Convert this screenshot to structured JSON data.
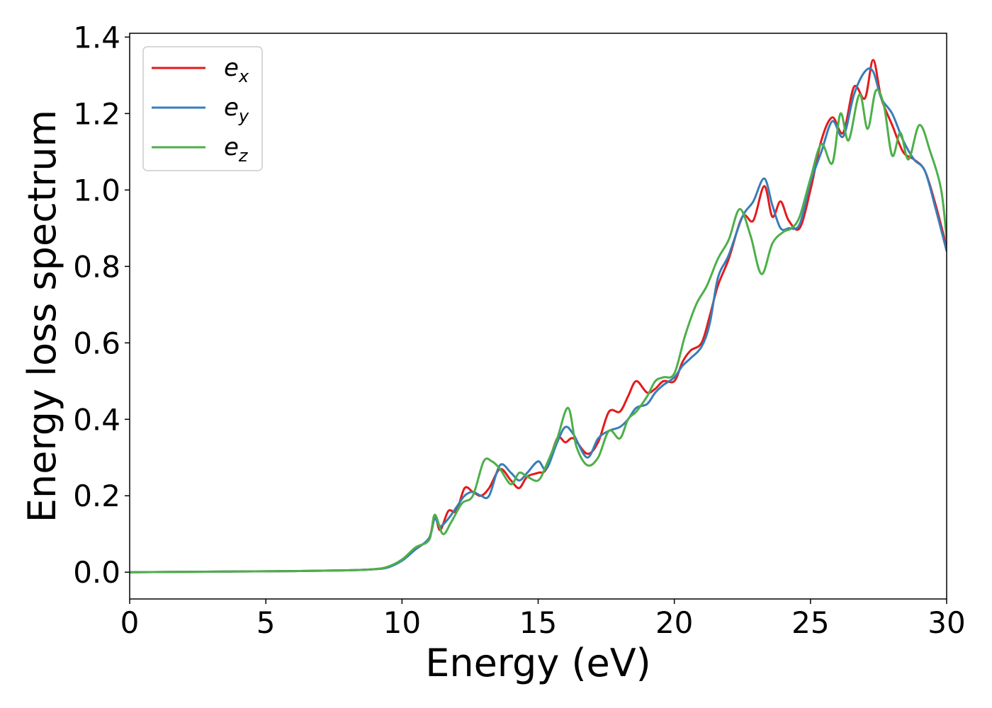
{
  "chart_data": {
    "type": "line",
    "title": "",
    "xlabel": "Energy (eV)",
    "ylabel": "Energy loss spectrum",
    "xlim": [
      0,
      30
    ],
    "ylim": [
      -0.07,
      1.41
    ],
    "xticks": [
      0,
      5,
      10,
      15,
      20,
      25,
      30
    ],
    "xtick_labels": [
      "0",
      "5",
      "10",
      "15",
      "20",
      "25",
      "30"
    ],
    "yticks": [
      0.0,
      0.2,
      0.4,
      0.6,
      0.8,
      1.0,
      1.2,
      1.4
    ],
    "ytick_labels": [
      "0.0",
      "0.2",
      "0.4",
      "0.6",
      "0.8",
      "1.0",
      "1.2",
      "1.4"
    ],
    "grid": false,
    "legend_position": "top-left",
    "series": [
      {
        "name": "e_x",
        "legend_base": "e",
        "legend_sub": "x",
        "color": "#e41a1c",
        "x": [
          0,
          2,
          4,
          6,
          8,
          9,
          9.5,
          10,
          10.5,
          11,
          11.2,
          11.4,
          11.7,
          12,
          12.3,
          12.6,
          12.9,
          13.2,
          13.6,
          14,
          14.3,
          14.6,
          15,
          15.3,
          15.7,
          16,
          16.3,
          16.8,
          17.2,
          17.6,
          18,
          18.3,
          18.6,
          19,
          19.3,
          19.6,
          20,
          20.3,
          20.6,
          21,
          21.3,
          21.6,
          22,
          22.5,
          22.9,
          23.3,
          23.6,
          23.9,
          24.2,
          24.6,
          25,
          25.4,
          25.8,
          26.2,
          26.6,
          27,
          27.3,
          27.6,
          28,
          28.4,
          28.8,
          29.2,
          29.6,
          30
        ],
        "y": [
          0,
          0.001,
          0.002,
          0.003,
          0.005,
          0.008,
          0.013,
          0.033,
          0.06,
          0.09,
          0.15,
          0.11,
          0.16,
          0.16,
          0.22,
          0.21,
          0.2,
          0.22,
          0.27,
          0.24,
          0.22,
          0.25,
          0.26,
          0.27,
          0.35,
          0.34,
          0.35,
          0.31,
          0.34,
          0.42,
          0.42,
          0.46,
          0.5,
          0.47,
          0.48,
          0.5,
          0.5,
          0.55,
          0.58,
          0.6,
          0.67,
          0.75,
          0.82,
          0.93,
          0.92,
          1.01,
          0.93,
          0.97,
          0.92,
          0.9,
          1.0,
          1.13,
          1.19,
          1.15,
          1.27,
          1.24,
          1.34,
          1.24,
          1.17,
          1.1,
          1.08,
          1.05,
          0.96,
          0.85
        ]
      },
      {
        "name": "e_y",
        "legend_base": "e",
        "legend_sub": "y",
        "color": "#377eb8",
        "x": [
          0,
          2,
          4,
          6,
          8,
          9,
          9.5,
          10,
          10.5,
          11,
          11.2,
          11.4,
          11.7,
          12,
          12.3,
          12.6,
          12.9,
          13.2,
          13.6,
          14,
          14.3,
          14.6,
          15,
          15.3,
          15.7,
          16,
          16.3,
          16.8,
          17.2,
          17.6,
          18,
          18.3,
          18.6,
          19,
          19.3,
          19.6,
          20,
          20.3,
          20.6,
          21,
          21.3,
          21.6,
          22,
          22.5,
          22.9,
          23.3,
          23.6,
          23.9,
          24.2,
          24.6,
          25,
          25.4,
          25.8,
          26.2,
          26.6,
          27,
          27.3,
          27.6,
          28,
          28.4,
          28.8,
          29.2,
          29.6,
          30
        ],
        "y": [
          0,
          0.001,
          0.002,
          0.003,
          0.005,
          0.008,
          0.013,
          0.03,
          0.06,
          0.09,
          0.14,
          0.12,
          0.14,
          0.17,
          0.2,
          0.21,
          0.2,
          0.2,
          0.28,
          0.26,
          0.24,
          0.26,
          0.29,
          0.27,
          0.34,
          0.38,
          0.36,
          0.3,
          0.35,
          0.37,
          0.38,
          0.4,
          0.43,
          0.44,
          0.47,
          0.49,
          0.51,
          0.54,
          0.56,
          0.59,
          0.65,
          0.77,
          0.83,
          0.93,
          0.97,
          1.03,
          0.96,
          0.9,
          0.9,
          0.91,
          1.02,
          1.1,
          1.18,
          1.14,
          1.25,
          1.31,
          1.31,
          1.24,
          1.2,
          1.13,
          1.08,
          1.05,
          0.95,
          0.84
        ]
      },
      {
        "name": "e_z",
        "legend_base": "e",
        "legend_sub": "z",
        "color": "#4daf4a",
        "x": [
          0,
          2,
          4,
          6,
          8,
          9,
          9.5,
          10,
          10.5,
          11,
          11.2,
          11.5,
          11.8,
          12.2,
          12.6,
          13,
          13.3,
          13.6,
          14,
          14.3,
          14.6,
          15,
          15.3,
          15.7,
          16.1,
          16.4,
          16.8,
          17.2,
          17.6,
          18,
          18.3,
          18.6,
          19,
          19.3,
          19.6,
          20,
          20.4,
          20.8,
          21.2,
          21.6,
          22,
          22.4,
          22.8,
          23.2,
          23.6,
          24,
          24.3,
          24.6,
          25,
          25.4,
          25.8,
          26.1,
          26.4,
          26.8,
          27.1,
          27.4,
          27.7,
          28,
          28.3,
          28.6,
          29,
          29.4,
          29.8,
          30
        ],
        "y": [
          0,
          0.001,
          0.002,
          0.003,
          0.005,
          0.008,
          0.015,
          0.033,
          0.065,
          0.085,
          0.15,
          0.1,
          0.13,
          0.18,
          0.2,
          0.29,
          0.29,
          0.27,
          0.23,
          0.26,
          0.25,
          0.24,
          0.28,
          0.35,
          0.43,
          0.33,
          0.28,
          0.3,
          0.37,
          0.35,
          0.4,
          0.42,
          0.46,
          0.5,
          0.51,
          0.52,
          0.62,
          0.7,
          0.75,
          0.82,
          0.87,
          0.95,
          0.88,
          0.78,
          0.86,
          0.89,
          0.9,
          0.93,
          1.03,
          1.12,
          1.07,
          1.2,
          1.13,
          1.25,
          1.16,
          1.26,
          1.22,
          1.09,
          1.15,
          1.08,
          1.17,
          1.1,
          1.0,
          0.87
        ]
      }
    ]
  }
}
